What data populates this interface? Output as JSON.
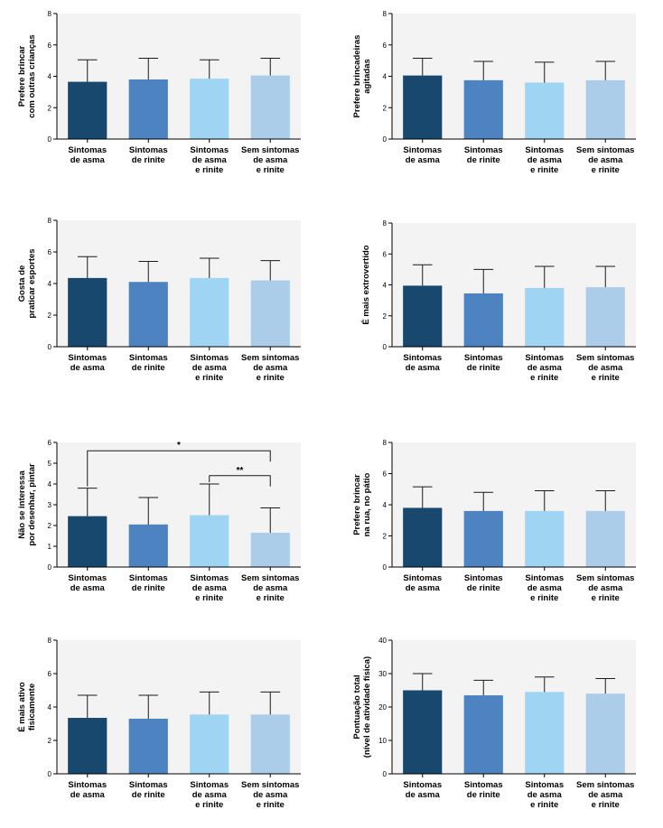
{
  "chart_data": [
    {
      "type": "bar",
      "ylabel": [
        "Prefere brincar",
        "com outras crianças"
      ],
      "ylim": [
        0,
        8
      ],
      "yticks": [
        "0",
        "2",
        "4",
        "6",
        "8"
      ],
      "categories": [
        [
          "Sintomas",
          "de asma"
        ],
        [
          "Sintomas",
          "de rinite"
        ],
        [
          "Sintomas",
          "de asma",
          "e rinite"
        ],
        [
          "Sem sintomas",
          "de asma",
          "e rinite"
        ]
      ],
      "values": [
        3.65,
        3.8,
        3.85,
        4.05
      ],
      "errors": [
        1.4,
        1.35,
        1.2,
        1.1
      ],
      "colors": [
        "#19486f",
        "#4e83c1",
        "#9fd4f2",
        "#abcde9"
      ],
      "significance": []
    },
    {
      "type": "bar",
      "ylabel": [
        "Prefere brincadeiras",
        "agitadas"
      ],
      "ylim": [
        0,
        8
      ],
      "yticks": [
        "0",
        "2",
        "4",
        "6",
        "8"
      ],
      "categories": [
        [
          "Sintomas",
          "de asma"
        ],
        [
          "Sintomas",
          "de rinite"
        ],
        [
          "Sintomas",
          "de asma",
          "e rinite"
        ],
        [
          "Sem sintomas",
          "de asma",
          "e rinite"
        ]
      ],
      "values": [
        4.05,
        3.75,
        3.6,
        3.75
      ],
      "errors": [
        1.1,
        1.2,
        1.3,
        1.2
      ],
      "colors": [
        "#19486f",
        "#4e83c1",
        "#9fd4f2",
        "#abcde9"
      ],
      "significance": []
    },
    {
      "type": "bar",
      "ylabel": [
        "Gosta de",
        "praticar esportes"
      ],
      "ylim": [
        0,
        8
      ],
      "yticks": [
        "0",
        "2",
        "4",
        "6",
        "8"
      ],
      "categories": [
        [
          "Sintomas",
          "de asma"
        ],
        [
          "Sintomas",
          "de rinite"
        ],
        [
          "Sintomas",
          "de asma",
          "e rinite"
        ],
        [
          "Sem sintomas",
          "de asma",
          "e rinite"
        ]
      ],
      "values": [
        4.35,
        4.1,
        4.35,
        4.2
      ],
      "errors": [
        1.35,
        1.3,
        1.25,
        1.25
      ],
      "colors": [
        "#19486f",
        "#4e83c1",
        "#9fd4f2",
        "#abcde9"
      ],
      "significance": []
    },
    {
      "type": "bar",
      "ylabel": [
        "É mais extrovertido"
      ],
      "ylim": [
        0,
        8
      ],
      "yticks": [
        "0",
        "2",
        "4",
        "6",
        "8"
      ],
      "categories": [
        [
          "Sintomas",
          "de asma"
        ],
        [
          "Sintomas",
          "de rinite"
        ],
        [
          "Sintomas",
          "de asma",
          "e rinite"
        ],
        [
          "Sem sintomas",
          "de asma",
          "e rinite"
        ]
      ],
      "values": [
        3.95,
        3.45,
        3.8,
        3.85
      ],
      "errors": [
        1.35,
        1.55,
        1.4,
        1.35
      ],
      "colors": [
        "#19486f",
        "#4e83c1",
        "#9fd4f2",
        "#abcde9"
      ],
      "significance": []
    },
    {
      "type": "bar",
      "ylabel": [
        "Não se interessa",
        "por desenhar, pintar"
      ],
      "ylim": [
        0,
        6
      ],
      "yticks": [
        "0",
        "1",
        "2",
        "3",
        "4",
        "5",
        "6"
      ],
      "categories": [
        [
          "Sintomas",
          "de asma"
        ],
        [
          "Sintomas",
          "de rinite"
        ],
        [
          "Sintomas",
          "de asma",
          "e rinite"
        ],
        [
          "Sem sintomas",
          "de asma",
          "e rinite"
        ]
      ],
      "values": [
        2.45,
        2.05,
        2.5,
        1.65
      ],
      "errors": [
        1.35,
        1.3,
        1.5,
        1.2
      ],
      "colors": [
        "#19486f",
        "#4e83c1",
        "#9fd4f2",
        "#abcde9"
      ],
      "significance": [
        {
          "from": 0,
          "to": 3,
          "level": 5.6,
          "label": "*"
        },
        {
          "from": 2,
          "to": 3,
          "level": 4.4,
          "label": "**"
        }
      ]
    },
    {
      "type": "bar",
      "ylabel": [
        "Prefere brincar",
        "na rua, no pátio"
      ],
      "ylim": [
        0,
        8
      ],
      "yticks": [
        "0",
        "2",
        "4",
        "6",
        "8"
      ],
      "categories": [
        [
          "Sintomas",
          "de asma"
        ],
        [
          "Sintomas",
          "de rinite"
        ],
        [
          "Sintomas",
          "de asma",
          "e rinite"
        ],
        [
          "Sem sintomas",
          "de asma",
          "e rinite"
        ]
      ],
      "values": [
        3.8,
        3.6,
        3.6,
        3.6
      ],
      "errors": [
        1.35,
        1.2,
        1.3,
        1.3
      ],
      "colors": [
        "#19486f",
        "#4e83c1",
        "#9fd4f2",
        "#abcde9"
      ],
      "significance": []
    },
    {
      "type": "bar",
      "ylabel": [
        "É mais ativo",
        "fisicamente"
      ],
      "ylim": [
        0,
        8
      ],
      "yticks": [
        "0",
        "2",
        "4",
        "6",
        "8"
      ],
      "categories": [
        [
          "Sintomas",
          "de asma"
        ],
        [
          "Sintomas",
          "de rinite"
        ],
        [
          "Sintomas",
          "de asma",
          "e rinite"
        ],
        [
          "Sem sintomas",
          "de asma",
          "e rinite"
        ]
      ],
      "values": [
        3.35,
        3.3,
        3.55,
        3.55
      ],
      "errors": [
        1.35,
        1.4,
        1.35,
        1.35
      ],
      "colors": [
        "#19486f",
        "#4e83c1",
        "#9fd4f2",
        "#abcde9"
      ],
      "significance": []
    },
    {
      "type": "bar",
      "ylabel": [
        "Pontuação total",
        "(nível de atividade física)"
      ],
      "ylim": [
        0,
        40
      ],
      "yticks": [
        "0",
        "10",
        "20",
        "30",
        "40"
      ],
      "categories": [
        [
          "Sintomas",
          "de asma"
        ],
        [
          "Sintomas",
          "de rinite"
        ],
        [
          "Sintomas",
          "de asma",
          "e rinite"
        ],
        [
          "Sem sintomas",
          "de asma",
          "e rinite"
        ]
      ],
      "values": [
        25,
        23.5,
        24.5,
        24
      ],
      "errors": [
        5,
        4.5,
        4.5,
        4.5
      ],
      "colors": [
        "#19486f",
        "#4e83c1",
        "#9fd4f2",
        "#abcde9"
      ],
      "significance": []
    }
  ]
}
